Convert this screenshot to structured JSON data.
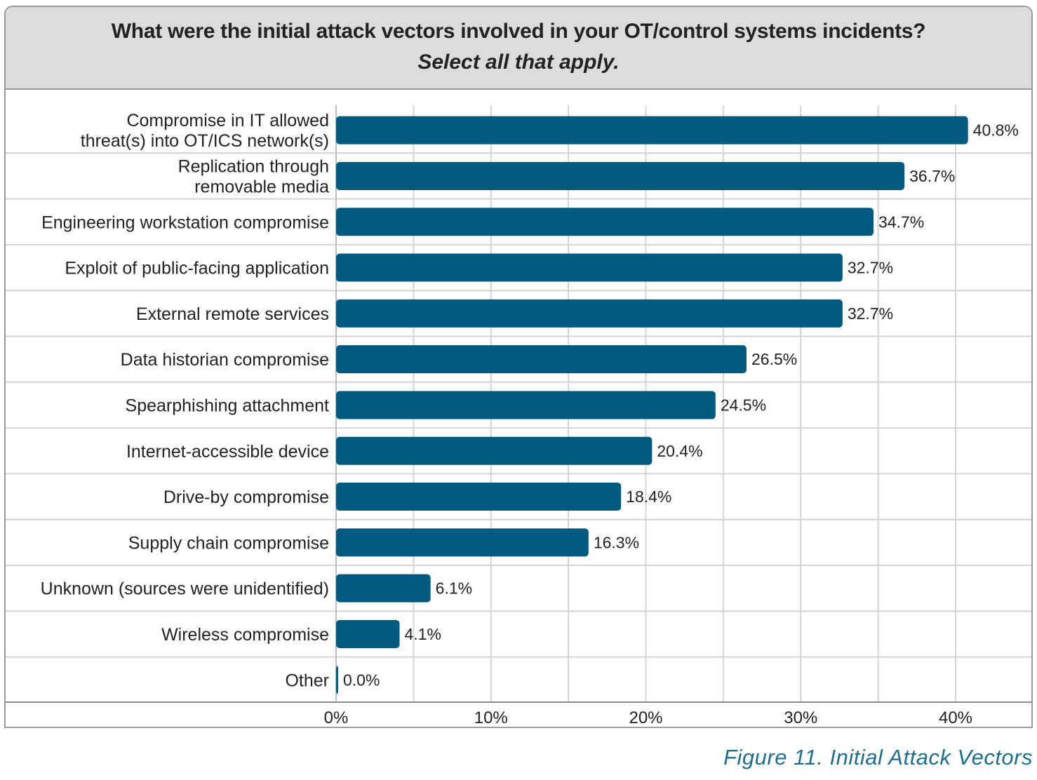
{
  "chart_data": {
    "type": "bar",
    "orientation": "horizontal",
    "title": "What were the initial attack vectors involved in your OT/control systems incidents?",
    "subtitle": "Select all that apply.",
    "categories": [
      [
        "Compromise in IT allowed",
        "threat(s) into OT/ICS network(s)"
      ],
      [
        "Replication through",
        "removable media"
      ],
      [
        "Engineering workstation compromise"
      ],
      [
        "Exploit of public-facing application"
      ],
      [
        "External remote services"
      ],
      [
        "Data historian compromise"
      ],
      [
        "Spearphishing attachment"
      ],
      [
        "Internet-accessible device"
      ],
      [
        "Drive-by compromise"
      ],
      [
        "Supply chain compromise"
      ],
      [
        "Unknown (sources were unidentified)"
      ],
      [
        "Wireless compromise"
      ],
      [
        "Other"
      ]
    ],
    "values": [
      40.8,
      36.7,
      34.7,
      32.7,
      32.7,
      26.5,
      24.5,
      20.4,
      18.4,
      16.3,
      6.1,
      4.1,
      0.0
    ],
    "value_labels": [
      "40.8%",
      "36.7%",
      "34.7%",
      "32.7%",
      "32.7%",
      "26.5%",
      "24.5%",
      "20.4%",
      "18.4%",
      "16.3%",
      "6.1%",
      "4.1%",
      "0.0%"
    ],
    "xlim": [
      0,
      40
    ],
    "xticks": [
      0,
      10,
      20,
      30,
      40
    ],
    "xtick_labels": [
      "0%",
      "10%",
      "20%",
      "30%",
      "40%"
    ],
    "grid": true,
    "legend": false,
    "bar_color": "#005a80",
    "grid_color": "#d4d4d4"
  },
  "caption": "Figure 11. Initial Attack Vectors"
}
